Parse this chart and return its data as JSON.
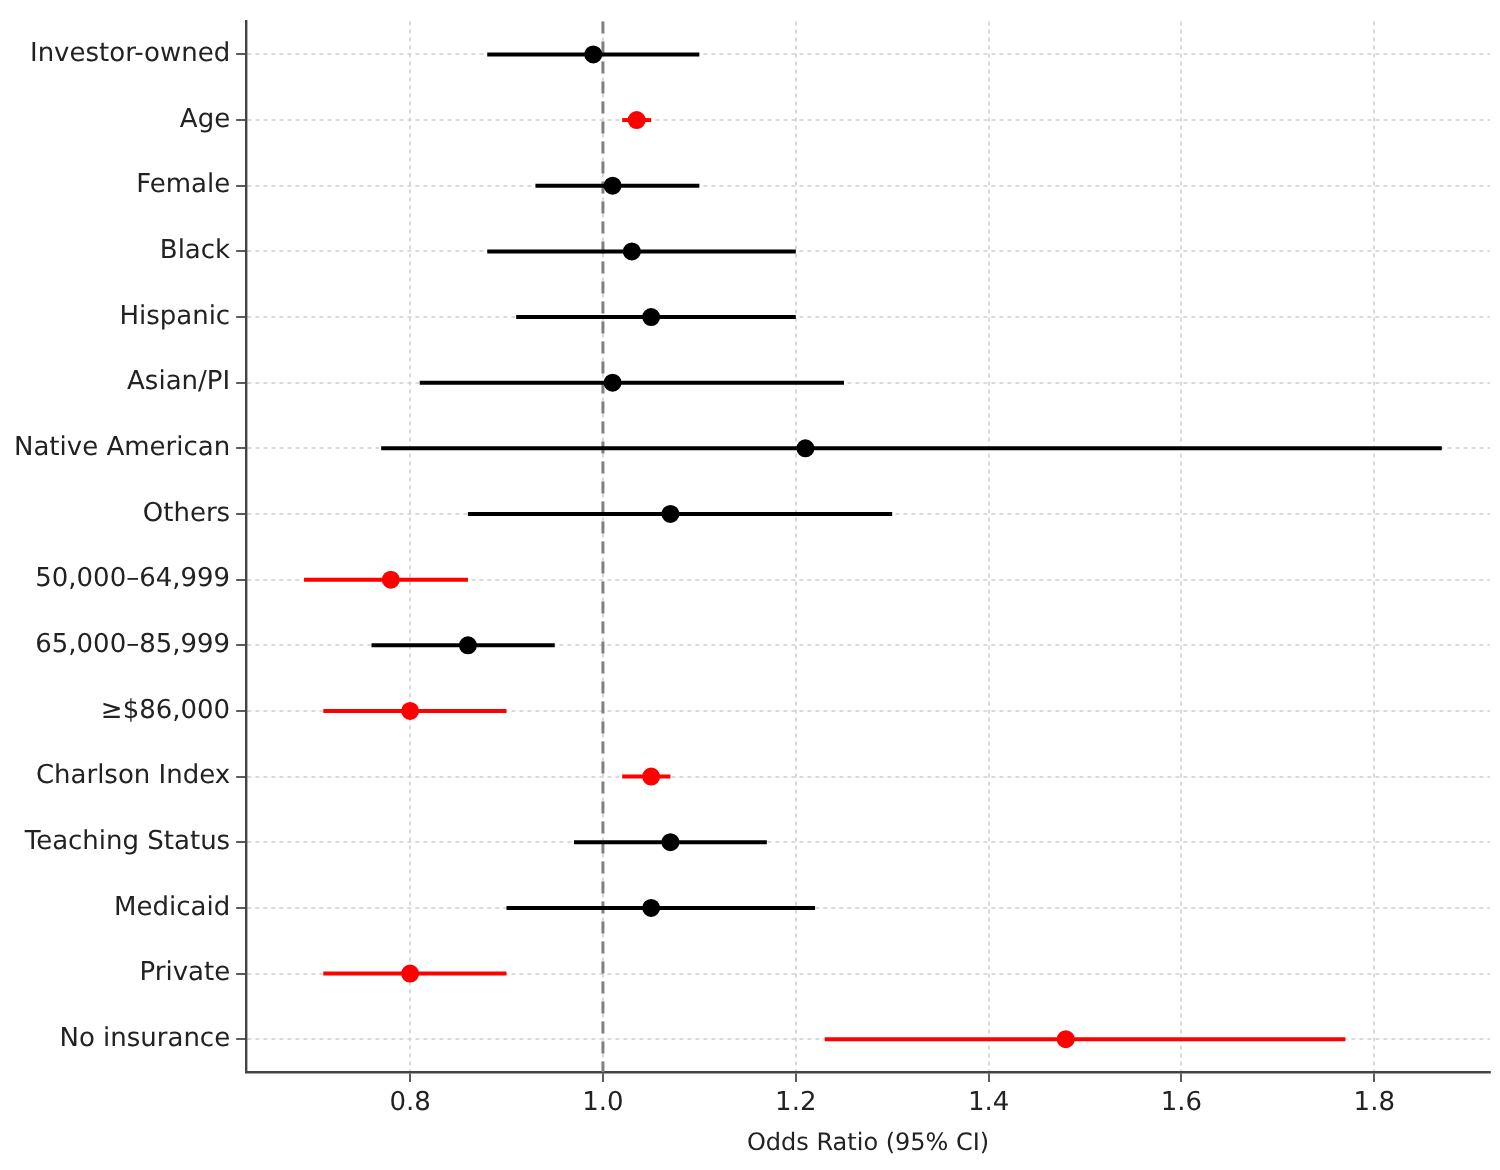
{
  "chart_data": {
    "type": "scatter",
    "orientation": "horizontal",
    "xlabel": "Odds Ratio (95% CI)",
    "categories": [
      "Investor-owned",
      "Age",
      "Female",
      "Black",
      "Hispanic",
      "Asian/PI",
      "Native American",
      "Others",
      "50,000–64,999",
      "65,000–85,999",
      "≥$86,000",
      "Charlson Index",
      "Teaching Status",
      "Medicaid",
      "Private",
      "No insurance"
    ],
    "values": [
      0.99,
      1.035,
      1.01,
      1.03,
      1.05,
      1.01,
      1.21,
      1.07,
      0.78,
      0.86,
      0.8,
      1.05,
      1.07,
      1.05,
      0.8,
      1.48
    ],
    "errors": [
      [
        0.88,
        1.1
      ],
      [
        1.02,
        1.05
      ],
      [
        0.93,
        1.1
      ],
      [
        0.88,
        1.2
      ],
      [
        0.91,
        1.2
      ],
      [
        0.81,
        1.25
      ],
      [
        0.77,
        1.87
      ],
      [
        0.86,
        1.3
      ],
      [
        0.69,
        0.86
      ],
      [
        0.76,
        0.95
      ],
      [
        0.71,
        0.9
      ],
      [
        1.02,
        1.07
      ],
      [
        0.97,
        1.17
      ],
      [
        0.9,
        1.22
      ],
      [
        0.71,
        0.9
      ],
      [
        1.23,
        1.77
      ]
    ],
    "colors": [
      "#000000",
      "#ff0000",
      "#000000",
      "#000000",
      "#000000",
      "#000000",
      "#000000",
      "#000000",
      "#ff0000",
      "#000000",
      "#ff0000",
      "#ff0000",
      "#000000",
      "#000000",
      "#ff0000",
      "#ff0000"
    ],
    "xlim": [
      0.63,
      1.92
    ],
    "xticks": [
      {
        "value": 0.8,
        "label": "0.8"
      },
      {
        "value": 1.0,
        "label": "1.0"
      },
      {
        "value": 1.2,
        "label": "1.2"
      },
      {
        "value": 1.4,
        "label": "1.4"
      },
      {
        "value": 1.6,
        "label": "1.6"
      },
      {
        "value": 1.8,
        "label": "1.8"
      }
    ],
    "grid": true,
    "marker": "circle",
    "ref_lines": [
      {
        "axis": "x",
        "value": 1.0,
        "color": "#808080",
        "line_style": "dashed"
      }
    ]
  }
}
